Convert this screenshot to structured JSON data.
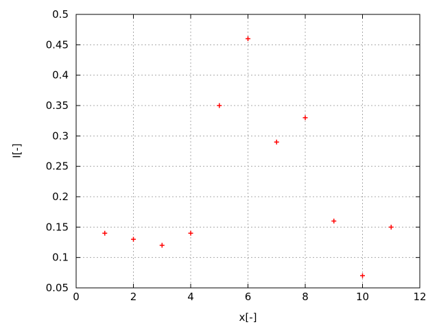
{
  "chart_data": {
    "type": "scatter",
    "title": "",
    "xlabel": "x[-]",
    "ylabel": "I[-]",
    "x": [
      1,
      2,
      3,
      4,
      5,
      6,
      7,
      8,
      9,
      10,
      11
    ],
    "y": [
      0.14,
      0.13,
      0.12,
      0.14,
      0.35,
      0.46,
      0.29,
      0.33,
      0.16,
      0.07,
      0.15
    ],
    "xlim": [
      0,
      12
    ],
    "ylim": [
      0.05,
      0.5
    ],
    "xticks": {
      "values": [
        0,
        2,
        4,
        6,
        8,
        10,
        12
      ],
      "labels": [
        "0",
        "2",
        "4",
        "6",
        "8",
        "10",
        "12"
      ]
    },
    "yticks": {
      "values": [
        0.05,
        0.1,
        0.15,
        0.2,
        0.25,
        0.3,
        0.35,
        0.4,
        0.45,
        0.5
      ],
      "labels": [
        "0.05",
        "0.1",
        "0.15",
        "0.2",
        "0.25",
        "0.3",
        "0.35",
        "0.4",
        "0.45",
        "0.5"
      ]
    },
    "grid": true,
    "legend": false,
    "marker": "plus",
    "colors": {
      "marker": "#ff0000",
      "grid": "#a8a8a8",
      "frame": "#000000",
      "text": "#000000",
      "background": "#ffffff"
    }
  }
}
